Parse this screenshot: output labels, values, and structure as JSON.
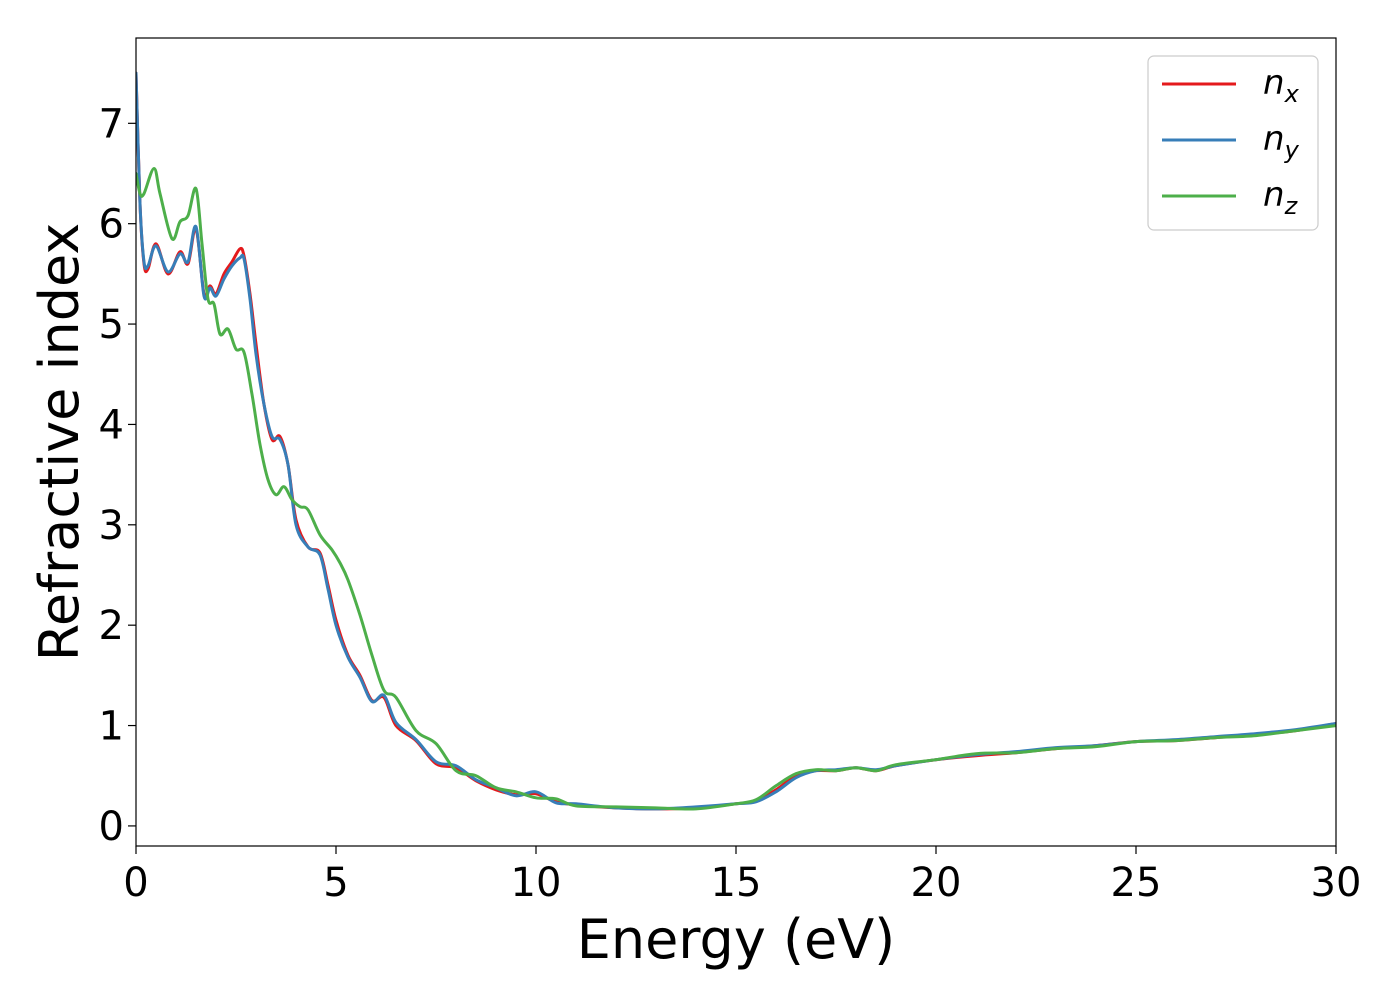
{
  "chart_data": {
    "type": "line",
    "title": "",
    "xlabel": "Energy (eV)",
    "ylabel": "Refractive index",
    "xlim": [
      0,
      30
    ],
    "ylim": [
      -0.2,
      7.85
    ],
    "xticks": [
      0,
      5,
      10,
      15,
      20,
      25,
      30
    ],
    "yticks": [
      0,
      1,
      2,
      3,
      4,
      5,
      6,
      7
    ],
    "grid": false,
    "legend_position": "top-right",
    "series": [
      {
        "name": "n_x",
        "label_main": "n",
        "label_sub": "x",
        "color": "#e41a1c",
        "x": [
          0,
          0.1,
          0.2,
          0.3,
          0.5,
          0.8,
          1.1,
          1.3,
          1.5,
          1.7,
          1.85,
          2.0,
          2.2,
          2.4,
          2.6,
          2.7,
          2.85,
          3.0,
          3.2,
          3.4,
          3.6,
          3.8,
          4.0,
          4.3,
          4.6,
          4.8,
          5.0,
          5.3,
          5.6,
          5.9,
          6.2,
          6.5,
          7.0,
          7.5,
          8.0,
          8.5,
          9.0,
          9.5,
          10.0,
          10.5,
          11.0,
          12.0,
          13.0,
          14.0,
          15.0,
          15.5,
          16.0,
          16.5,
          17.0,
          17.5,
          18.0,
          18.5,
          19.0,
          20.0,
          21.0,
          22.0,
          23.0,
          24.0,
          25.0,
          26.0,
          27.0,
          28.0,
          29.0,
          30.0
        ],
        "y": [
          7.5,
          6.2,
          5.6,
          5.55,
          5.8,
          5.5,
          5.72,
          5.6,
          5.95,
          5.3,
          5.38,
          5.3,
          5.5,
          5.62,
          5.75,
          5.68,
          5.3,
          4.8,
          4.2,
          3.85,
          3.88,
          3.6,
          3.05,
          2.78,
          2.72,
          2.4,
          2.05,
          1.7,
          1.5,
          1.25,
          1.28,
          1.0,
          0.85,
          0.62,
          0.58,
          0.45,
          0.36,
          0.31,
          0.32,
          0.24,
          0.21,
          0.18,
          0.17,
          0.18,
          0.22,
          0.25,
          0.36,
          0.5,
          0.55,
          0.55,
          0.58,
          0.55,
          0.6,
          0.66,
          0.7,
          0.73,
          0.77,
          0.8,
          0.84,
          0.85,
          0.88,
          0.91,
          0.95,
          1.02
        ]
      },
      {
        "name": "n_y",
        "label_main": "n",
        "label_sub": "y",
        "color": "#377eb8",
        "x": [
          0,
          0.1,
          0.2,
          0.3,
          0.5,
          0.8,
          1.1,
          1.3,
          1.5,
          1.7,
          1.85,
          2.0,
          2.2,
          2.4,
          2.6,
          2.7,
          2.85,
          3.0,
          3.2,
          3.4,
          3.6,
          3.8,
          4.0,
          4.3,
          4.6,
          4.8,
          5.0,
          5.3,
          5.6,
          5.9,
          6.2,
          6.5,
          7.0,
          7.5,
          8.0,
          8.5,
          9.0,
          9.5,
          10.0,
          10.5,
          11.0,
          12.0,
          13.0,
          14.0,
          15.0,
          15.5,
          16.0,
          16.5,
          17.0,
          17.5,
          18.0,
          18.5,
          19.0,
          20.0,
          21.0,
          22.0,
          23.0,
          24.0,
          25.0,
          26.0,
          27.0,
          28.0,
          29.0,
          30.0
        ],
        "y": [
          7.5,
          6.2,
          5.62,
          5.58,
          5.78,
          5.52,
          5.7,
          5.62,
          5.97,
          5.28,
          5.36,
          5.28,
          5.45,
          5.58,
          5.66,
          5.65,
          5.25,
          4.7,
          4.2,
          3.88,
          3.85,
          3.6,
          3.0,
          2.78,
          2.7,
          2.36,
          2.0,
          1.68,
          1.48,
          1.24,
          1.3,
          1.03,
          0.86,
          0.64,
          0.6,
          0.46,
          0.38,
          0.3,
          0.34,
          0.23,
          0.22,
          0.18,
          0.17,
          0.19,
          0.22,
          0.24,
          0.34,
          0.48,
          0.55,
          0.56,
          0.58,
          0.56,
          0.6,
          0.66,
          0.71,
          0.74,
          0.78,
          0.8,
          0.84,
          0.86,
          0.89,
          0.92,
          0.96,
          1.02
        ]
      },
      {
        "name": "n_z",
        "label_main": "n",
        "label_sub": "z",
        "color": "#4daf4a",
        "x": [
          0,
          0.1,
          0.2,
          0.45,
          0.6,
          0.9,
          1.1,
          1.3,
          1.5,
          1.65,
          1.8,
          1.95,
          2.1,
          2.3,
          2.5,
          2.7,
          2.9,
          3.1,
          3.3,
          3.5,
          3.7,
          3.9,
          4.1,
          4.3,
          4.6,
          4.9,
          5.1,
          5.3,
          5.6,
          5.9,
          6.2,
          6.5,
          7.0,
          7.5,
          8.0,
          8.5,
          9.0,
          9.5,
          10.0,
          10.5,
          11.0,
          12.0,
          13.0,
          14.0,
          15.0,
          15.5,
          16.0,
          16.5,
          17.0,
          17.5,
          18.0,
          18.5,
          19.0,
          20.0,
          21.0,
          22.0,
          23.0,
          24.0,
          25.0,
          26.0,
          27.0,
          28.0,
          29.0,
          30.0
        ],
        "y": [
          6.5,
          6.3,
          6.3,
          6.55,
          6.3,
          5.85,
          6.02,
          6.08,
          6.35,
          5.8,
          5.25,
          5.2,
          4.9,
          4.95,
          4.75,
          4.72,
          4.3,
          3.8,
          3.45,
          3.3,
          3.38,
          3.25,
          3.18,
          3.15,
          2.9,
          2.75,
          2.62,
          2.45,
          2.1,
          1.7,
          1.35,
          1.28,
          0.95,
          0.82,
          0.55,
          0.5,
          0.38,
          0.34,
          0.28,
          0.27,
          0.2,
          0.19,
          0.18,
          0.17,
          0.22,
          0.26,
          0.4,
          0.52,
          0.56,
          0.55,
          0.58,
          0.55,
          0.61,
          0.66,
          0.72,
          0.73,
          0.77,
          0.79,
          0.84,
          0.85,
          0.88,
          0.9,
          0.95,
          1.0
        ]
      }
    ]
  }
}
